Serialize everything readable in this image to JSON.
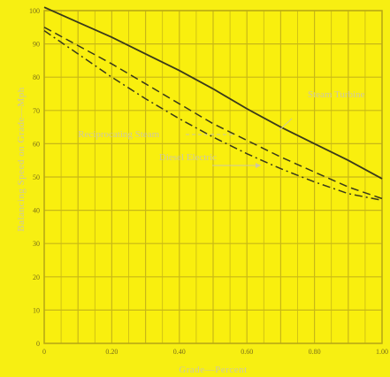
{
  "chart_data": {
    "type": "line",
    "title": "",
    "xlabel": "Grade—Percent",
    "ylabel": "Balancing Speed on Grade—Mph",
    "xlim": [
      0,
      1.0
    ],
    "ylim": [
      0,
      100
    ],
    "x_ticks": [
      "0",
      "0.20",
      "0.40",
      "0.60",
      "0.80",
      "1.00"
    ],
    "y_ticks": [
      "0",
      "10",
      "20",
      "30",
      "40",
      "50",
      "60",
      "70",
      "80",
      "90",
      "100"
    ],
    "grid": true,
    "legend": "none",
    "colors": {
      "background": "#f7ef12",
      "grid": "#c8b817",
      "line": "#3a3a1a",
      "text": "#cfc8a0"
    },
    "series": [
      {
        "name": "Steam Turbine",
        "style": "solid",
        "x": [
          0,
          0.1,
          0.2,
          0.3,
          0.4,
          0.5,
          0.6,
          0.7,
          0.8,
          0.9,
          1.0
        ],
        "y": [
          101,
          96.5,
          92,
          87,
          82,
          76.5,
          70.5,
          65,
          60,
          55,
          49.5
        ]
      },
      {
        "name": "Reciprocating Steam",
        "style": "dashed",
        "x": [
          0,
          0.1,
          0.2,
          0.3,
          0.4,
          0.5,
          0.6,
          0.7,
          0.8,
          0.9,
          1.0
        ],
        "y": [
          95,
          89.5,
          84,
          78,
          72,
          66,
          61,
          56,
          51.5,
          47,
          43.5
        ]
      },
      {
        "name": "Diesel Electric",
        "style": "dashdot",
        "x": [
          0,
          0.1,
          0.2,
          0.3,
          0.4,
          0.5,
          0.6,
          0.7,
          0.8,
          0.9,
          1.0
        ],
        "y": [
          94,
          87,
          80,
          73.5,
          67.5,
          62,
          57,
          52.5,
          48.5,
          45,
          43
        ]
      }
    ],
    "annotations": [
      {
        "text": "Steam Turbine",
        "x": 0.78,
        "y": 74
      },
      {
        "text": "Reciprocating Steam",
        "x": 0.1,
        "y": 62
      },
      {
        "text": "Diesel Electric",
        "x": 0.34,
        "y": 55
      }
    ]
  }
}
